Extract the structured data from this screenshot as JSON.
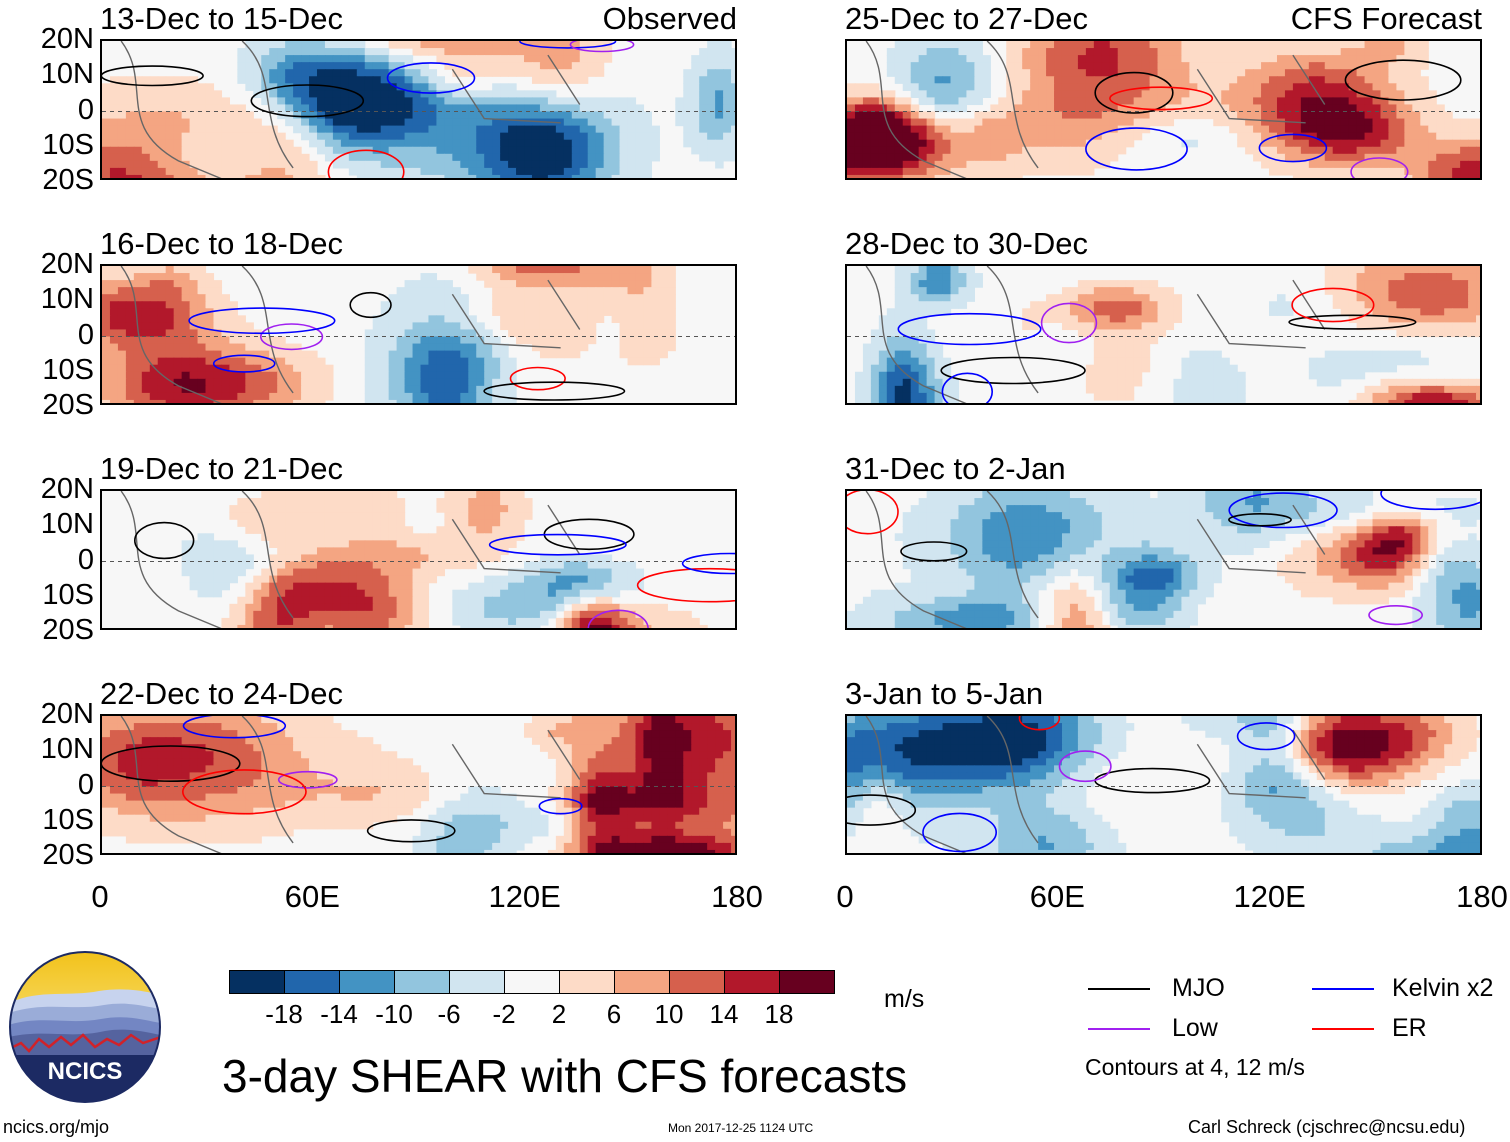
{
  "panels": [
    {
      "title": "13-Dec to 15-Dec",
      "tag": "Observed",
      "col": 0,
      "row": 0
    },
    {
      "title": "16-Dec to 18-Dec",
      "tag": "",
      "col": 0,
      "row": 1
    },
    {
      "title": "19-Dec to 21-Dec",
      "tag": "",
      "col": 0,
      "row": 2
    },
    {
      "title": "22-Dec to 24-Dec",
      "tag": "",
      "col": 0,
      "row": 3
    },
    {
      "title": "25-Dec to 27-Dec",
      "tag": "CFS Forecast",
      "col": 1,
      "row": 0
    },
    {
      "title": "28-Dec to 30-Dec",
      "tag": "",
      "col": 1,
      "row": 1
    },
    {
      "title": "31-Dec to 2-Jan",
      "tag": "",
      "col": 1,
      "row": 2
    },
    {
      "title": "3-Jan to 5-Jan",
      "tag": "",
      "col": 1,
      "row": 3
    }
  ],
  "lat_labels": [
    "20N",
    "10N",
    "0",
    "10S",
    "20S"
  ],
  "lon_labels": [
    "0",
    "60E",
    "120E",
    "180"
  ],
  "colorbar": {
    "unit": "m/s",
    "tick_labels": [
      "-18",
      "-14",
      "-10",
      "-6",
      "-2",
      "2",
      "6",
      "10",
      "14",
      "18"
    ],
    "colors": [
      "#053061",
      "#2166ac",
      "#4393c3",
      "#92c5de",
      "#d1e5f0",
      "#f7f7f7",
      "#fddbc7",
      "#f4a582",
      "#d6604d",
      "#b2182b",
      "#67001f"
    ]
  },
  "legend": {
    "items": [
      {
        "label": "MJO",
        "color": "#000000"
      },
      {
        "label": "Kelvin x2",
        "color": "#0000ff"
      },
      {
        "label": "Low",
        "color": "#a020f0"
      },
      {
        "label": "ER",
        "color": "#ff0000"
      }
    ],
    "note": "Contours at 4, 12 m/s"
  },
  "chart_data": {
    "type": "heatmap",
    "title": "3-day SHEAR with CFS forecasts",
    "variable": "SHEAR",
    "unit": "m/s",
    "x_range": [
      0,
      180
    ],
    "y_range": [
      -20,
      20
    ],
    "xticks": [
      "0",
      "60E",
      "120E",
      "180"
    ],
    "yticks": [
      "20N",
      "10N",
      "0",
      "10S",
      "20S"
    ],
    "levels": [
      -18,
      -14,
      -10,
      -6,
      -2,
      2,
      6,
      10,
      14,
      18
    ],
    "contour_levels": [
      4,
      12
    ],
    "contour_series": [
      "MJO",
      "Kelvin x2",
      "Low",
      "ER"
    ]
  },
  "logo": {
    "text": "NCICS"
  },
  "footer": {
    "left": "ncics.org/mjo",
    "center": "Mon 2017-12-25 1124 UTC",
    "right": "Carl Schreck (cjschrec@ncsu.edu)"
  }
}
